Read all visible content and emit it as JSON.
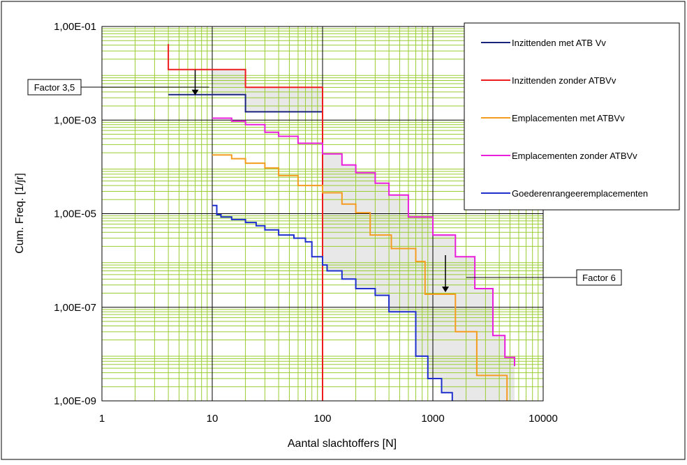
{
  "chart_data": {
    "type": "line",
    "xlabel": "Aantal slachtoffers [N]",
    "ylabel": "Cum. Freq. [1/jr]",
    "x_scale": "log",
    "y_scale": "log",
    "xlim": [
      1,
      10000
    ],
    "ylim": [
      1e-09,
      0.1
    ],
    "x_tick_values": [
      1,
      10,
      100,
      1000,
      10000
    ],
    "x_tick_labels": [
      "1",
      "10",
      "100",
      "1000",
      "10000"
    ],
    "y_tick_values": [
      1e-09,
      1e-07,
      1e-05,
      0.001,
      0.1
    ],
    "y_tick_labels": [
      "1,00E-09",
      "1,00E-07",
      "1,00E-05",
      "1,00E-03",
      "1,00E-01"
    ],
    "grid": true,
    "legend_position": "top-right",
    "colors": {
      "grid": "#9ACD32",
      "shade": "#E8E8E8",
      "decade_line": "#000000"
    },
    "series": [
      {
        "name": "Inzittenden met ATB Vv",
        "color": "#1A237E",
        "x": [
          4,
          20,
          100
        ],
        "y": [
          0.0035,
          0.0015,
          0.0015
        ]
      },
      {
        "name": "Inzittenden zonder ATBVv",
        "color": "#EE1C1C",
        "x": [
          4,
          20,
          100
        ],
        "y": [
          0.012,
          0.005,
          1e-09
        ],
        "start_spike": 0.042
      },
      {
        "name": "Emplacementen met ATBVv",
        "color": "#F39C1F",
        "x": [
          10,
          15,
          20,
          30,
          40,
          60,
          100,
          150,
          200,
          270,
          420,
          700,
          850,
          1600,
          2500,
          4700
        ],
        "y": [
          0.00018,
          0.00015,
          0.00012,
          9.5e-05,
          6.5e-05,
          4e-05,
          2.8e-05,
          1.6e-05,
          1.05e-05,
          3.5e-06,
          1.8e-06,
          9.5e-07,
          1.9e-07,
          3e-08,
          3.5e-09,
          1e-09
        ]
      },
      {
        "name": "Emplacementen zonder ATBVv",
        "color": "#E91EDB",
        "x": [
          10,
          15,
          20,
          30,
          40,
          60,
          100,
          150,
          200,
          300,
          400,
          600,
          1000,
          1600,
          2400,
          3500,
          4500,
          5500
        ],
        "y": [
          0.0011,
          0.00095,
          0.0008,
          0.00055,
          0.00045,
          0.00032,
          0.00019,
          0.00011,
          7.5e-05,
          4.5e-05,
          2.5e-05,
          8.5e-06,
          3.5e-06,
          1.2e-06,
          2.5e-07,
          2.5e-08,
          8.5e-09,
          5.5e-09
        ]
      },
      {
        "name": "Goederenrangeeremplacementen",
        "color": "#1E2FCB",
        "x": [
          10,
          11,
          12,
          15,
          20,
          25,
          30,
          40,
          55,
          70,
          80,
          100,
          110,
          150,
          200,
          300,
          400,
          700,
          900,
          1200,
          1500
        ],
        "y": [
          1.5e-05,
          9.5e-06,
          8.5e-06,
          7.5e-06,
          6.5e-06,
          5.5e-06,
          4.5e-06,
          3.5e-06,
          3e-06,
          2.5e-06,
          1.2e-06,
          8e-07,
          6e-07,
          4e-07,
          2.5e-07,
          1.8e-07,
          8e-08,
          9e-09,
          3e-09,
          1.5e-09,
          1e-09
        ]
      }
    ],
    "annotations": [
      {
        "text": "Factor 3,5",
        "target_x": 7,
        "target_y": 0.0085,
        "arrow_from": 0.0118,
        "arrow_to": 0.0034
      },
      {
        "text": "Factor 6",
        "target_x": 1500,
        "target_y": 7.5e-07,
        "arrow_from": 1.3e-06,
        "arrow_to": 2.1e-07
      }
    ]
  }
}
